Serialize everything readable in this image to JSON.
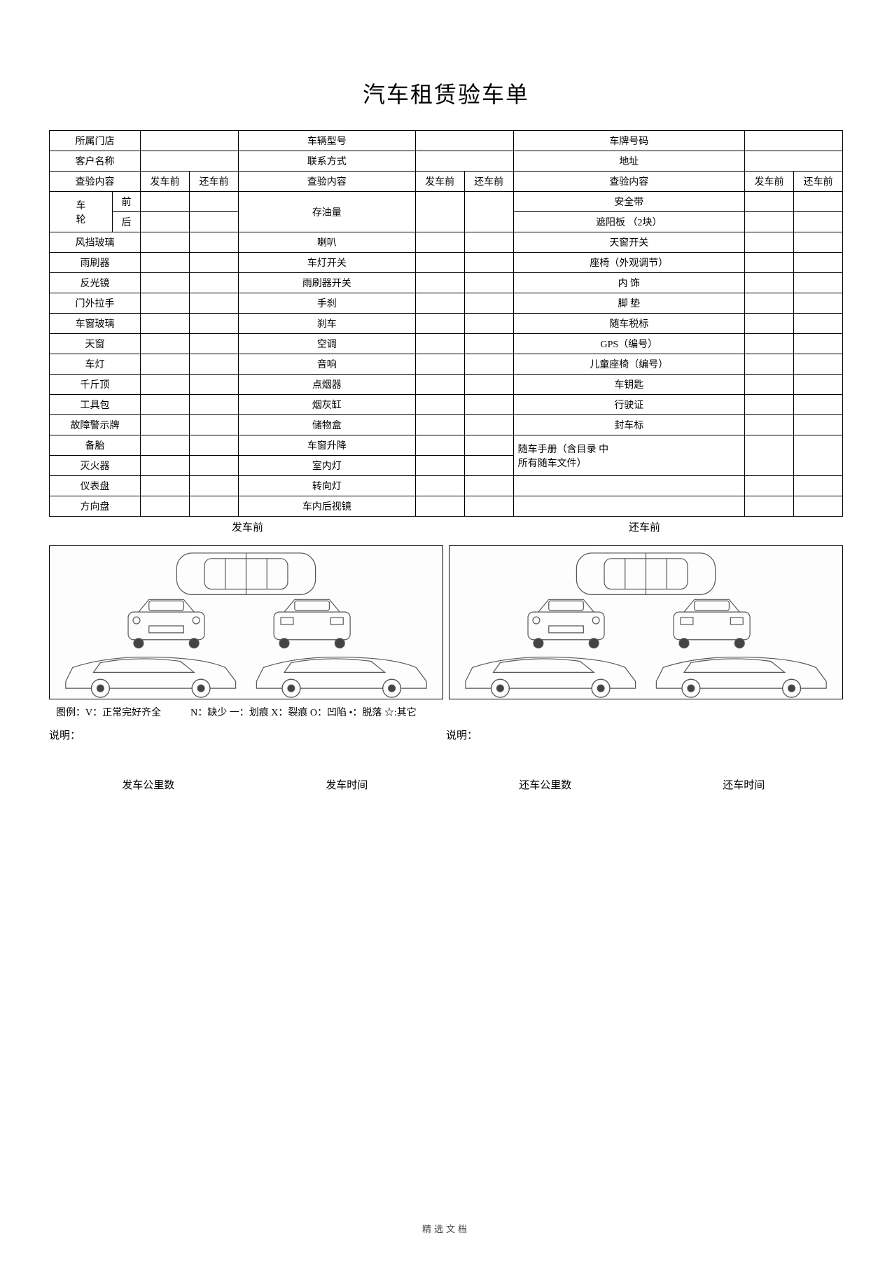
{
  "title": "汽车租赁验车单",
  "header_rows": [
    [
      "所属门店",
      "",
      "车辆型号",
      "",
      "车牌号码",
      ""
    ],
    [
      "客户名称",
      "",
      "联系方式",
      "",
      "地址",
      ""
    ]
  ],
  "check_header": [
    "查验内容",
    "发车前",
    "还车前",
    "查验内容",
    "发车前",
    "还车前",
    "查验内容",
    "发车前",
    "还车前"
  ],
  "col1_special": {
    "label": "车\n轮",
    "sub": [
      "前",
      "后"
    ]
  },
  "col1_items": [
    "风挡玻璃",
    "雨刷器",
    "反光镜",
    "门外拉手",
    "车窗玻璃",
    "天窗",
    "车灯",
    "千斤顶",
    "工具包",
    "故障警示牌",
    "备胎",
    "灭火器",
    "仪表盘",
    "方向盘"
  ],
  "col2_items": [
    "存油量",
    "",
    "喇叭",
    "车灯开关",
    "雨刷器开关",
    "手刹",
    "刹车",
    "空调",
    "音响",
    "点烟器",
    "烟灰缸",
    "储物盒",
    "车窗升降",
    "室内灯",
    "转向灯",
    "车内后视镜"
  ],
  "col3_items": [
    "安全带",
    "遮阳板 （2块）",
    "天窗开关",
    "座椅（外观调节）",
    "内 饰",
    "脚 垫",
    "随车税标",
    "GPS（编号）",
    "儿童座椅（编号）",
    "车钥匙",
    "行驶证",
    "封车标",
    "随车手册（含目录 中所有随车文件）",
    "",
    "",
    ""
  ],
  "section_left": "发车前",
  "section_right": "还车前",
  "legend": "图例：V：正常完好齐全　　　N：缺少  一：划痕  X：裂痕  O：凹陷  •：脱落  ☆:其它",
  "note_left": "说明：",
  "note_right": "说明：",
  "footer_fields": [
    "发车公里数",
    "发车时间",
    "还车公里数",
    "还车时间"
  ],
  "page_footer": "精选文档",
  "diagram_bg": "#fdfdfd",
  "border_color": "#000000"
}
